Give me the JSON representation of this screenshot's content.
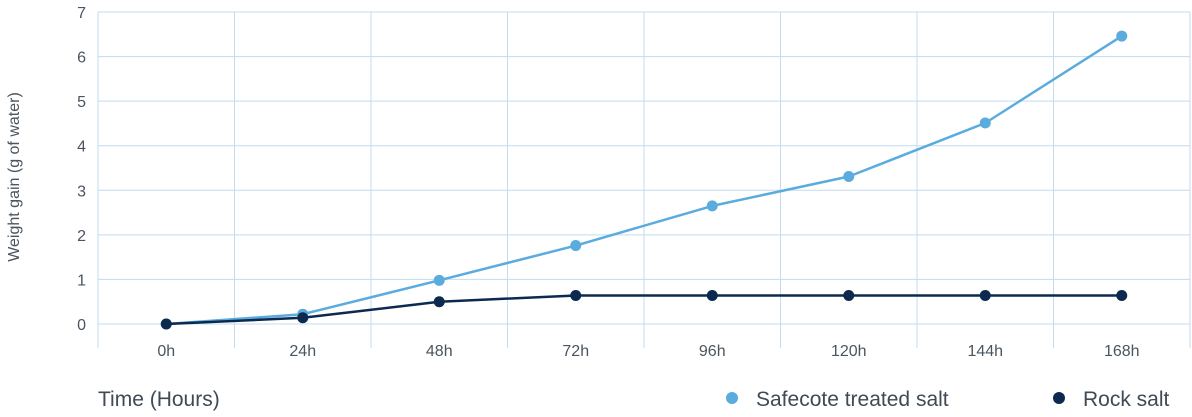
{
  "chart_data": {
    "type": "line",
    "title": "",
    "xlabel": "Time (Hours)",
    "ylabel": "Weight gain (g of water)",
    "categories": [
      "0h",
      "24h",
      "48h",
      "72h",
      "96h",
      "120h",
      "144h",
      "168h"
    ],
    "ylim": [
      0,
      7
    ],
    "yticks": [
      0,
      1,
      2,
      3,
      4,
      5,
      6,
      7
    ],
    "grid": true,
    "legend_position": "bottom-right",
    "series": [
      {
        "name": "Safecote treated salt",
        "color": "#5aacdf",
        "values": [
          0,
          0.22,
          0.98,
          1.76,
          2.65,
          3.31,
          4.51,
          6.46
        ]
      },
      {
        "name": "Rock salt",
        "color": "#0c2a4f",
        "values": [
          0,
          0.14,
          0.5,
          0.64,
          0.64,
          0.64,
          0.64,
          0.64
        ]
      }
    ],
    "colors": {
      "grid": "#c3dcef",
      "axis_text": "#4a5560"
    }
  }
}
